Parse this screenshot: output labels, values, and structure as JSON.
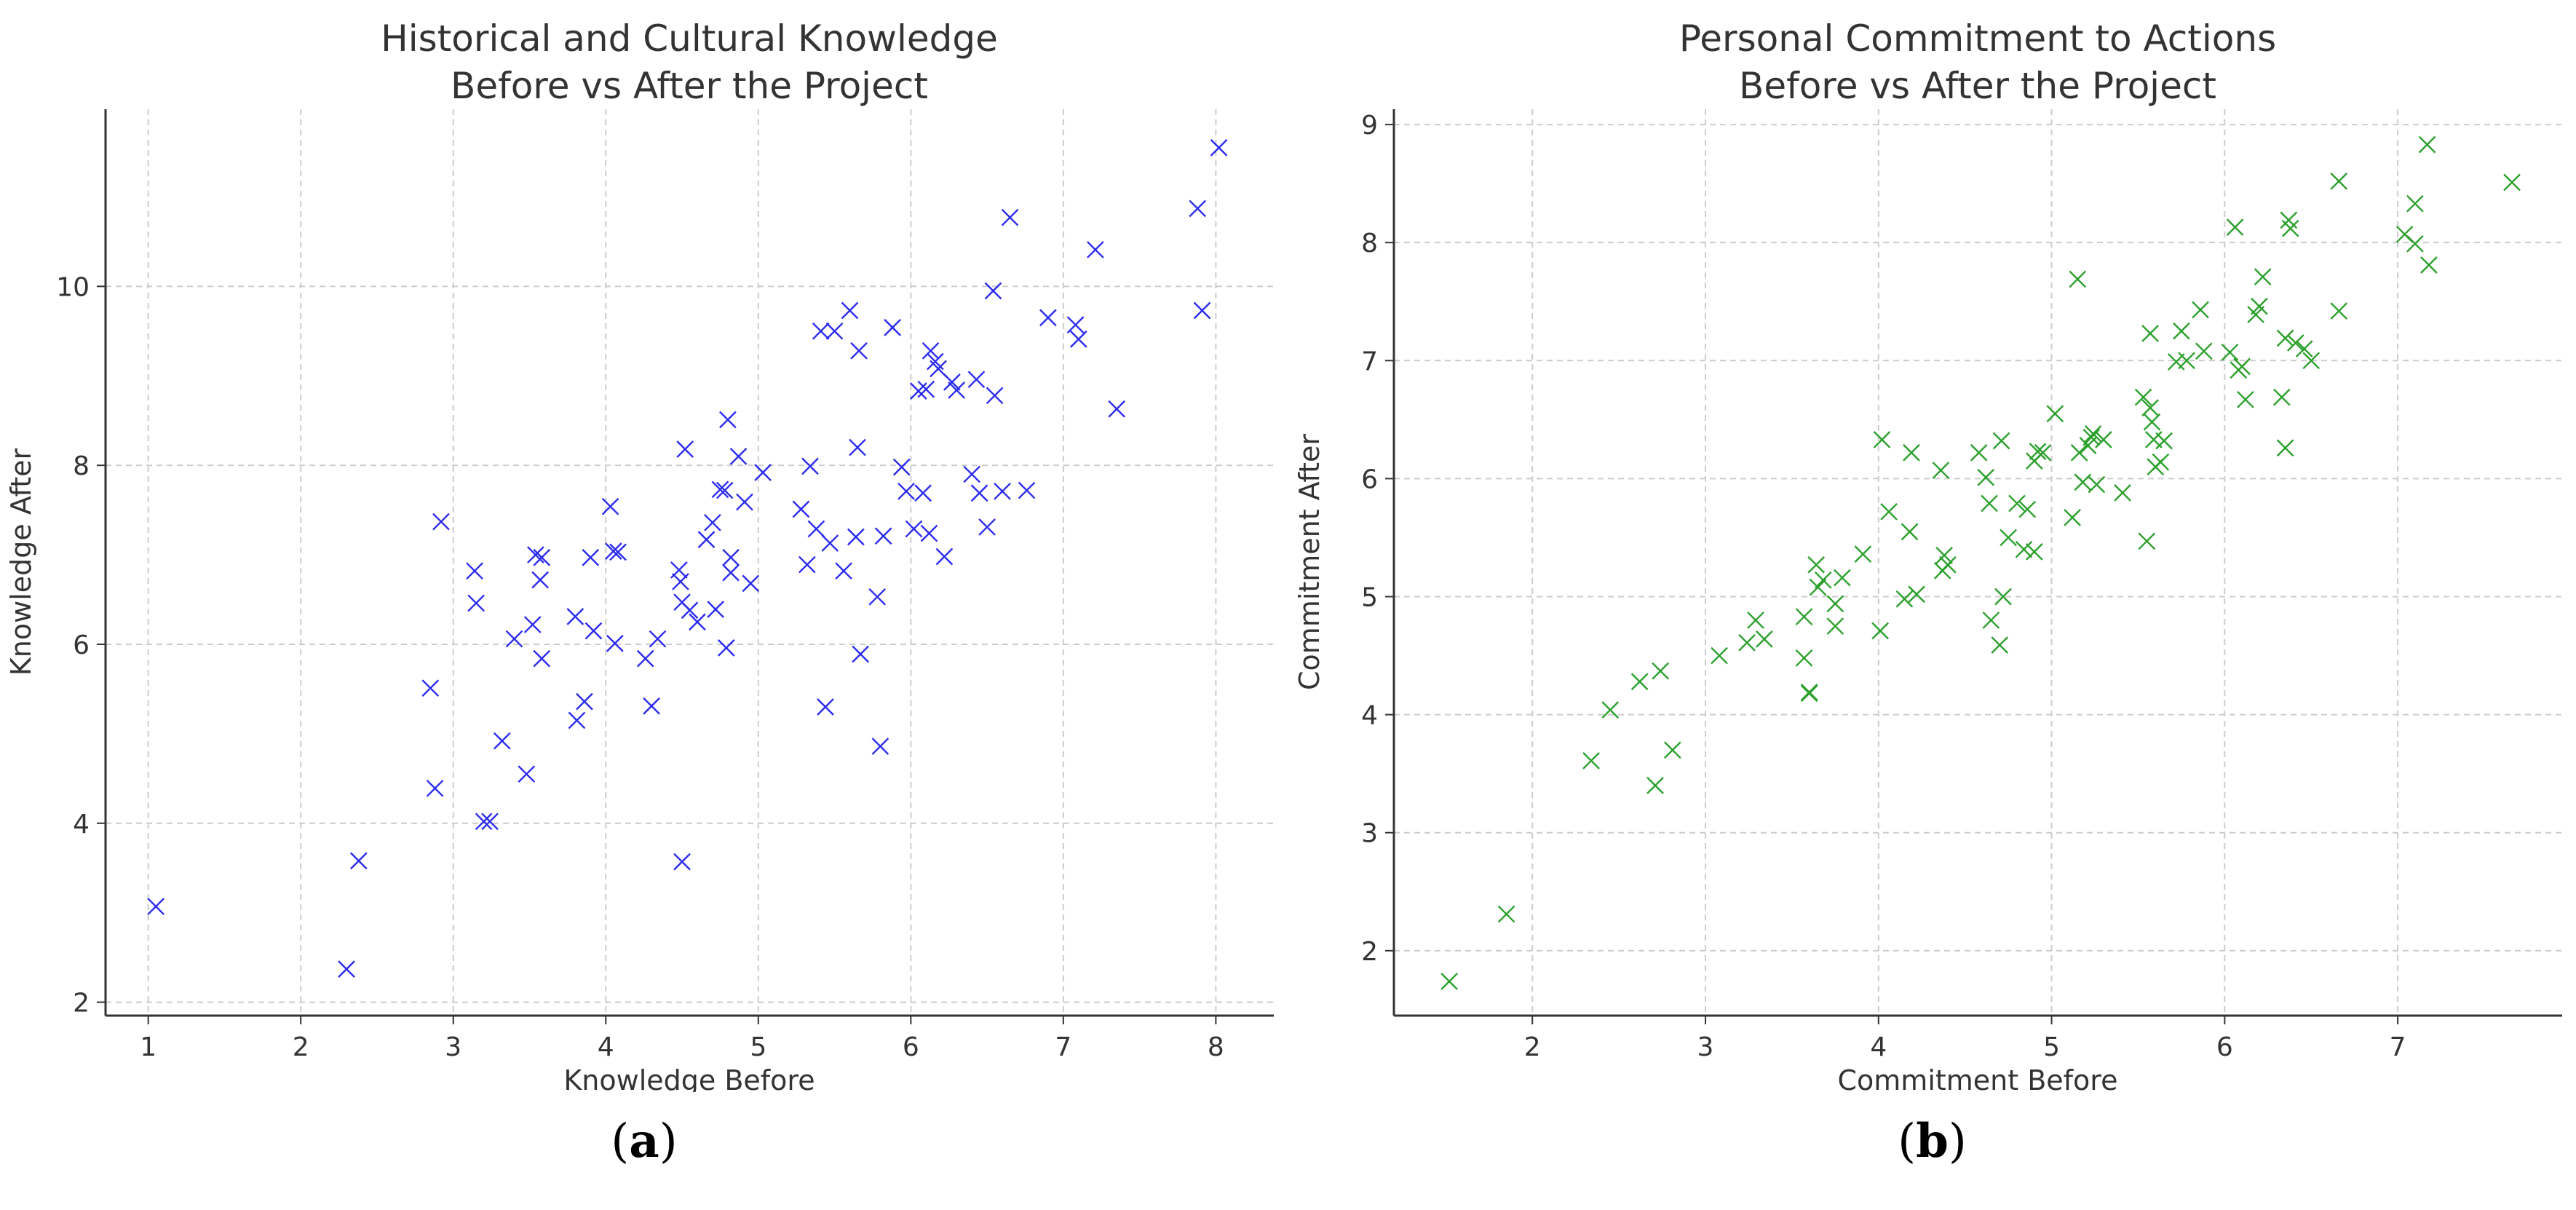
{
  "figure": {
    "captions": [
      {
        "open": "(",
        "letter": "a",
        "close": ")"
      },
      {
        "open": "(",
        "letter": "b",
        "close": ")"
      }
    ]
  },
  "chart_data": [
    {
      "type": "scatter",
      "title": [
        "Historical and Cultural Knowledge",
        "Before vs After the Project"
      ],
      "xlabel": "Knowledge Before",
      "ylabel": "Knowledge After",
      "xlim": [
        0.72,
        8.38
      ],
      "ylim": [
        1.85,
        11.98
      ],
      "xticks": [
        1,
        2,
        3,
        4,
        5,
        6,
        7,
        8
      ],
      "yticks": [
        2,
        4,
        6,
        8,
        10
      ],
      "grid": true,
      "marker": "x",
      "color": "#2b2bf0",
      "points": [
        [
          1.05,
          3.07
        ],
        [
          2.3,
          2.37
        ],
        [
          2.38,
          3.58
        ],
        [
          2.85,
          5.51
        ],
        [
          2.88,
          4.39
        ],
        [
          2.92,
          7.37
        ],
        [
          3.14,
          6.82
        ],
        [
          3.15,
          6.46
        ],
        [
          3.2,
          4.02
        ],
        [
          3.24,
          4.02
        ],
        [
          3.32,
          4.92
        ],
        [
          3.4,
          6.06
        ],
        [
          3.48,
          4.55
        ],
        [
          3.52,
          6.22
        ],
        [
          3.54,
          7.0
        ],
        [
          3.57,
          6.72
        ],
        [
          3.58,
          6.97
        ],
        [
          3.58,
          5.84
        ],
        [
          3.8,
          6.31
        ],
        [
          3.81,
          5.15
        ],
        [
          3.86,
          5.36
        ],
        [
          3.9,
          6.97
        ],
        [
          3.92,
          6.15
        ],
        [
          4.03,
          7.54
        ],
        [
          4.05,
          7.04
        ],
        [
          4.06,
          6.01
        ],
        [
          4.08,
          7.03
        ],
        [
          4.26,
          5.84
        ],
        [
          4.3,
          5.31
        ],
        [
          4.34,
          6.06
        ],
        [
          4.48,
          6.83
        ],
        [
          4.49,
          6.7
        ],
        [
          4.5,
          6.47
        ],
        [
          4.5,
          3.57
        ],
        [
          4.52,
          8.18
        ],
        [
          4.55,
          6.38
        ],
        [
          4.6,
          6.25
        ],
        [
          4.66,
          7.17
        ],
        [
          4.7,
          7.36
        ],
        [
          4.72,
          6.39
        ],
        [
          4.75,
          7.73
        ],
        [
          4.78,
          7.72
        ],
        [
          4.79,
          5.96
        ],
        [
          4.8,
          8.51
        ],
        [
          4.82,
          6.8
        ],
        [
          4.82,
          6.97
        ],
        [
          4.87,
          8.1
        ],
        [
          4.91,
          7.59
        ],
        [
          4.95,
          6.68
        ],
        [
          5.03,
          7.92
        ],
        [
          5.28,
          7.51
        ],
        [
          5.32,
          6.89
        ],
        [
          5.34,
          7.99
        ],
        [
          5.38,
          7.29
        ],
        [
          5.41,
          9.5
        ],
        [
          5.44,
          5.3
        ],
        [
          5.47,
          7.13
        ],
        [
          5.5,
          9.5
        ],
        [
          5.56,
          6.82
        ],
        [
          5.6,
          9.73
        ],
        [
          5.64,
          7.2
        ],
        [
          5.65,
          8.2
        ],
        [
          5.66,
          9.28
        ],
        [
          5.67,
          5.89
        ],
        [
          5.78,
          6.53
        ],
        [
          5.8,
          4.86
        ],
        [
          5.82,
          7.21
        ],
        [
          5.88,
          9.54
        ],
        [
          5.94,
          7.98
        ],
        [
          5.97,
          7.71
        ],
        [
          6.02,
          7.29
        ],
        [
          6.05,
          8.83
        ],
        [
          6.08,
          7.69
        ],
        [
          6.1,
          8.85
        ],
        [
          6.12,
          7.24
        ],
        [
          6.13,
          9.28
        ],
        [
          6.16,
          9.16
        ],
        [
          6.18,
          9.08
        ],
        [
          6.22,
          6.98
        ],
        [
          6.27,
          8.93
        ],
        [
          6.3,
          8.84
        ],
        [
          6.4,
          7.9
        ],
        [
          6.43,
          8.96
        ],
        [
          6.45,
          7.69
        ],
        [
          6.5,
          7.31
        ],
        [
          6.54,
          9.95
        ],
        [
          6.55,
          8.78
        ],
        [
          6.6,
          7.71
        ],
        [
          6.65,
          10.77
        ],
        [
          6.76,
          7.72
        ],
        [
          6.9,
          9.65
        ],
        [
          7.08,
          9.57
        ],
        [
          7.1,
          9.41
        ],
        [
          7.21,
          10.41
        ],
        [
          7.35,
          8.63
        ],
        [
          7.88,
          10.87
        ],
        [
          7.91,
          9.73
        ],
        [
          8.02,
          11.55
        ]
      ]
    },
    {
      "type": "scatter",
      "title": [
        "Personal Commitment to Actions",
        "Before vs After the Project"
      ],
      "xlabel": "Commitment Before",
      "ylabel": "Commitment After",
      "xlim": [
        1.2,
        7.95
      ],
      "ylim": [
        1.45,
        9.13
      ],
      "xticks": [
        2,
        3,
        4,
        5,
        6,
        7
      ],
      "yticks": [
        2,
        3,
        4,
        5,
        6,
        7,
        8,
        9
      ],
      "grid": true,
      "marker": "x",
      "color": "#2ca02c",
      "points": [
        [
          1.52,
          1.74
        ],
        [
          1.85,
          2.31
        ],
        [
          2.34,
          3.61
        ],
        [
          2.45,
          4.04
        ],
        [
          2.62,
          4.28
        ],
        [
          2.71,
          3.4
        ],
        [
          2.74,
          4.37
        ],
        [
          2.81,
          3.7
        ],
        [
          3.08,
          4.5
        ],
        [
          3.24,
          4.61
        ],
        [
          3.29,
          4.8
        ],
        [
          3.34,
          4.64
        ],
        [
          3.57,
          4.48
        ],
        [
          3.57,
          4.83
        ],
        [
          3.6,
          4.19
        ],
        [
          3.6,
          4.18
        ],
        [
          3.64,
          5.27
        ],
        [
          3.65,
          5.08
        ],
        [
          3.68,
          5.14
        ],
        [
          3.75,
          4.75
        ],
        [
          3.75,
          4.94
        ],
        [
          3.79,
          5.16
        ],
        [
          3.91,
          5.36
        ],
        [
          4.01,
          4.71
        ],
        [
          4.02,
          6.33
        ],
        [
          4.06,
          5.72
        ],
        [
          4.15,
          4.98
        ],
        [
          4.18,
          5.55
        ],
        [
          4.19,
          6.22
        ],
        [
          4.22,
          5.02
        ],
        [
          4.36,
          6.07
        ],
        [
          4.37,
          5.22
        ],
        [
          4.38,
          5.35
        ],
        [
          4.4,
          5.27
        ],
        [
          4.58,
          6.22
        ],
        [
          4.62,
          6.01
        ],
        [
          4.64,
          5.79
        ],
        [
          4.65,
          4.8
        ],
        [
          4.7,
          4.59
        ],
        [
          4.71,
          6.32
        ],
        [
          4.72,
          5.0
        ],
        [
          4.75,
          5.5
        ],
        [
          4.8,
          5.79
        ],
        [
          4.84,
          5.4
        ],
        [
          4.86,
          5.74
        ],
        [
          4.9,
          5.38
        ],
        [
          4.9,
          6.15
        ],
        [
          4.92,
          6.23
        ],
        [
          4.95,
          6.22
        ],
        [
          5.02,
          6.55
        ],
        [
          5.12,
          5.67
        ],
        [
          5.15,
          7.69
        ],
        [
          5.16,
          6.22
        ],
        [
          5.18,
          5.97
        ],
        [
          5.21,
          6.28
        ],
        [
          5.23,
          6.35
        ],
        [
          5.24,
          6.38
        ],
        [
          5.26,
          5.95
        ],
        [
          5.3,
          6.33
        ],
        [
          5.41,
          5.88
        ],
        [
          5.53,
          6.69
        ],
        [
          5.55,
          5.47
        ],
        [
          5.57,
          7.23
        ],
        [
          5.57,
          6.6
        ],
        [
          5.58,
          6.48
        ],
        [
          5.59,
          6.33
        ],
        [
          5.6,
          6.1
        ],
        [
          5.63,
          6.14
        ],
        [
          5.65,
          6.32
        ],
        [
          5.72,
          6.99
        ],
        [
          5.75,
          7.25
        ],
        [
          5.78,
          7.0
        ],
        [
          5.86,
          7.43
        ],
        [
          5.88,
          7.08
        ],
        [
          6.03,
          7.07
        ],
        [
          6.06,
          8.13
        ],
        [
          6.08,
          6.92
        ],
        [
          6.1,
          6.95
        ],
        [
          6.12,
          6.67
        ],
        [
          6.18,
          7.39
        ],
        [
          6.2,
          7.46
        ],
        [
          6.22,
          7.71
        ],
        [
          6.33,
          6.69
        ],
        [
          6.35,
          7.19
        ],
        [
          6.35,
          6.26
        ],
        [
          6.37,
          8.19
        ],
        [
          6.38,
          8.12
        ],
        [
          6.41,
          7.15
        ],
        [
          6.46,
          7.1
        ],
        [
          6.5,
          7.0
        ],
        [
          6.66,
          7.42
        ],
        [
          6.66,
          8.52
        ],
        [
          7.04,
          8.07
        ],
        [
          7.1,
          7.99
        ],
        [
          7.1,
          8.33
        ],
        [
          7.17,
          8.83
        ],
        [
          7.18,
          7.81
        ],
        [
          7.66,
          8.51
        ]
      ]
    }
  ]
}
